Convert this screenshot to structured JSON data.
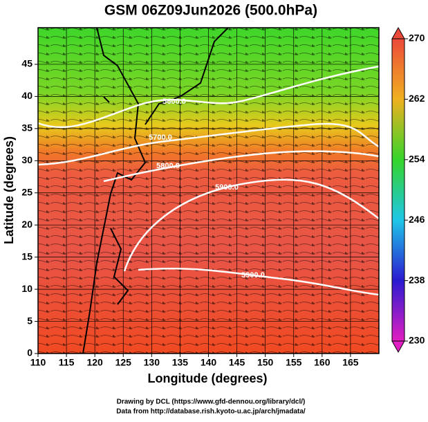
{
  "chart_data": {
    "type": "map",
    "title": "GSM 06Z09Jun2026 (500.0hPa)",
    "xlabel": "Longitude (degrees)",
    "ylabel": "Latitude  (degrees)",
    "xlim": [
      110,
      170
    ],
    "xticks": [
      110,
      115,
      120,
      125,
      130,
      135,
      140,
      145,
      150,
      155,
      160,
      165
    ],
    "ylim": [
      0,
      50
    ],
    "yticks": [
      0,
      5,
      10,
      15,
      20,
      25,
      30,
      35,
      40,
      45
    ],
    "grid": true,
    "colorbar": {
      "clim": [
        230,
        270
      ],
      "ticks": [
        230,
        238,
        246,
        254,
        262,
        270
      ]
    },
    "contours": [
      {
        "value": 5600,
        "label": "5600.0"
      },
      {
        "value": 5700,
        "label": "5700.0"
      },
      {
        "value": 5800,
        "label": "5800.0"
      },
      {
        "value": 5900,
        "label": "5900.0"
      },
      {
        "value": 5900,
        "label": "5900.0"
      }
    ],
    "footer": [
      "Drawing by DCL (https://www.gfd-dennou.org/library/dcl/)",
      "Data from http://database.rish.kyoto-u.ac.jp/arch/jmadata/"
    ]
  }
}
